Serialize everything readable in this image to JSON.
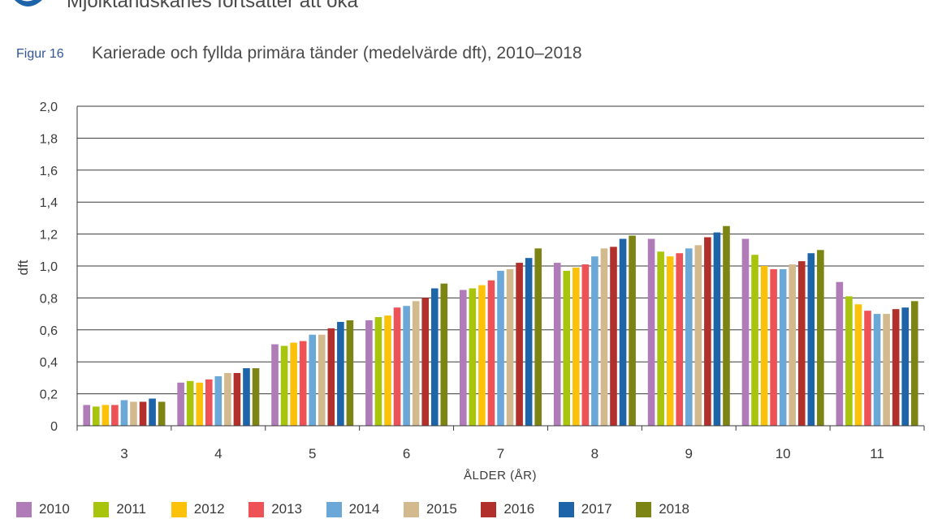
{
  "header": {
    "title": "Mjölktandskaries fortsätter att öka"
  },
  "figure": {
    "label": "Figur 16",
    "title": "Karierade och fyllda primära tänder (medelvärde dft), 2010–2018"
  },
  "colors": {
    "2010": "#b07cb8",
    "2011": "#a8c40c",
    "2012": "#fcc20a",
    "2013": "#ee5256",
    "2014": "#6ba8d8",
    "2015": "#d2b98e",
    "2016": "#b2302c",
    "2017": "#1e64a8",
    "2018": "#7c8414",
    "figure_label": "#2f5597"
  },
  "chart_data": {
    "type": "bar",
    "title": "Karierade och fyllda primära tänder (medelvärde dft), 2010–2018",
    "xlabel": "ÅLDER (ÅR)",
    "ylabel": "dft",
    "ylim": [
      0,
      2.0
    ],
    "yticks": [
      "0",
      "0,2",
      "0,4",
      "0,6",
      "0,8",
      "1,0",
      "1,2",
      "1,4",
      "1,6",
      "1,8",
      "2,0"
    ],
    "grid": true,
    "legend_position": "bottom",
    "categories": [
      "3",
      "4",
      "5",
      "6",
      "7",
      "8",
      "9",
      "10",
      "11"
    ],
    "series": [
      {
        "name": "2010",
        "values": [
          0.13,
          0.27,
          0.51,
          0.66,
          0.85,
          1.02,
          1.17,
          1.17,
          0.9
        ]
      },
      {
        "name": "2011",
        "values": [
          0.12,
          0.28,
          0.5,
          0.68,
          0.86,
          0.97,
          1.09,
          1.07,
          0.81
        ]
      },
      {
        "name": "2012",
        "values": [
          0.13,
          0.27,
          0.52,
          0.69,
          0.88,
          0.99,
          1.06,
          1.0,
          0.76
        ]
      },
      {
        "name": "2013",
        "values": [
          0.13,
          0.29,
          0.53,
          0.74,
          0.91,
          1.01,
          1.08,
          0.98,
          0.72
        ]
      },
      {
        "name": "2014",
        "values": [
          0.16,
          0.31,
          0.57,
          0.75,
          0.97,
          1.06,
          1.11,
          0.98,
          0.7
        ]
      },
      {
        "name": "2015",
        "values": [
          0.15,
          0.33,
          0.57,
          0.78,
          0.98,
          1.11,
          1.13,
          1.01,
          0.7
        ]
      },
      {
        "name": "2016",
        "values": [
          0.15,
          0.33,
          0.61,
          0.8,
          1.02,
          1.12,
          1.18,
          1.03,
          0.73
        ]
      },
      {
        "name": "2017",
        "values": [
          0.17,
          0.36,
          0.65,
          0.86,
          1.05,
          1.17,
          1.21,
          1.08,
          0.74
        ]
      },
      {
        "name": "2018",
        "values": [
          0.15,
          0.36,
          0.66,
          0.89,
          1.11,
          1.19,
          1.25,
          1.1,
          0.78
        ]
      }
    ]
  }
}
